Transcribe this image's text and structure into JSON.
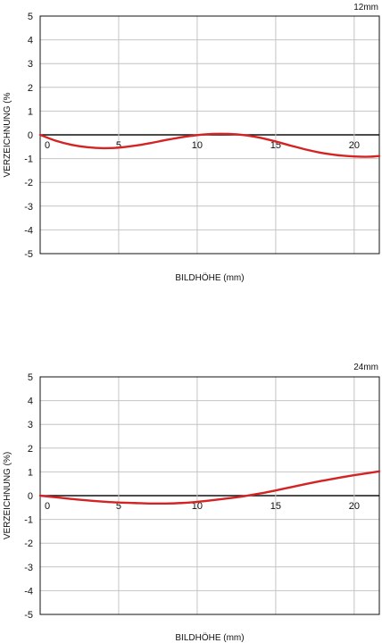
{
  "chart_data": [
    {
      "type": "line",
      "title": "12mm",
      "xlabel": "BILDHÖHE (mm)",
      "ylabel": "VERZEICHNUNG (%",
      "xlim": [
        0,
        21.6
      ],
      "ylim": [
        -5,
        5
      ],
      "xticks": [
        0,
        5,
        10,
        15,
        20
      ],
      "yticks": [
        5,
        4,
        3,
        2,
        1,
        0,
        -1,
        -2,
        -3,
        -4,
        -5
      ],
      "grid": true,
      "series": [
        {
          "color": "#d42323",
          "x": [
            0,
            1,
            2,
            3,
            4,
            5,
            6,
            7,
            8,
            9,
            10,
            11,
            12,
            13,
            14,
            15,
            16,
            17,
            18,
            19,
            20,
            21,
            21.6
          ],
          "y": [
            0,
            -0.25,
            -0.42,
            -0.52,
            -0.56,
            -0.54,
            -0.46,
            -0.35,
            -0.22,
            -0.1,
            -0.01,
            0.04,
            0.04,
            -0.01,
            -0.12,
            -0.28,
            -0.46,
            -0.63,
            -0.77,
            -0.86,
            -0.91,
            -0.92,
            -0.89
          ]
        }
      ]
    },
    {
      "type": "line",
      "title": "24mm",
      "xlabel": "BILDHÖHE (mm)",
      "ylabel": "VERZEICHNUNG (%)",
      "xlim": [
        0,
        21.6
      ],
      "ylim": [
        -5,
        5
      ],
      "xticks": [
        0,
        5,
        10,
        15,
        20
      ],
      "yticks": [
        5,
        4,
        3,
        2,
        1,
        0,
        -1,
        -2,
        -3,
        -4,
        -5
      ],
      "grid": true,
      "series": [
        {
          "color": "#d42323",
          "x": [
            0,
            1,
            2,
            3,
            4,
            5,
            6,
            7,
            8,
            9,
            10,
            11,
            12,
            13,
            14,
            15,
            16,
            17,
            18,
            19,
            20,
            21,
            21.6
          ],
          "y": [
            0,
            -0.07,
            -0.14,
            -0.2,
            -0.25,
            -0.29,
            -0.31,
            -0.33,
            -0.33,
            -0.31,
            -0.26,
            -0.19,
            -0.11,
            -0.02,
            0.09,
            0.22,
            0.36,
            0.5,
            0.63,
            0.75,
            0.86,
            0.96,
            1.02
          ]
        }
      ]
    }
  ]
}
